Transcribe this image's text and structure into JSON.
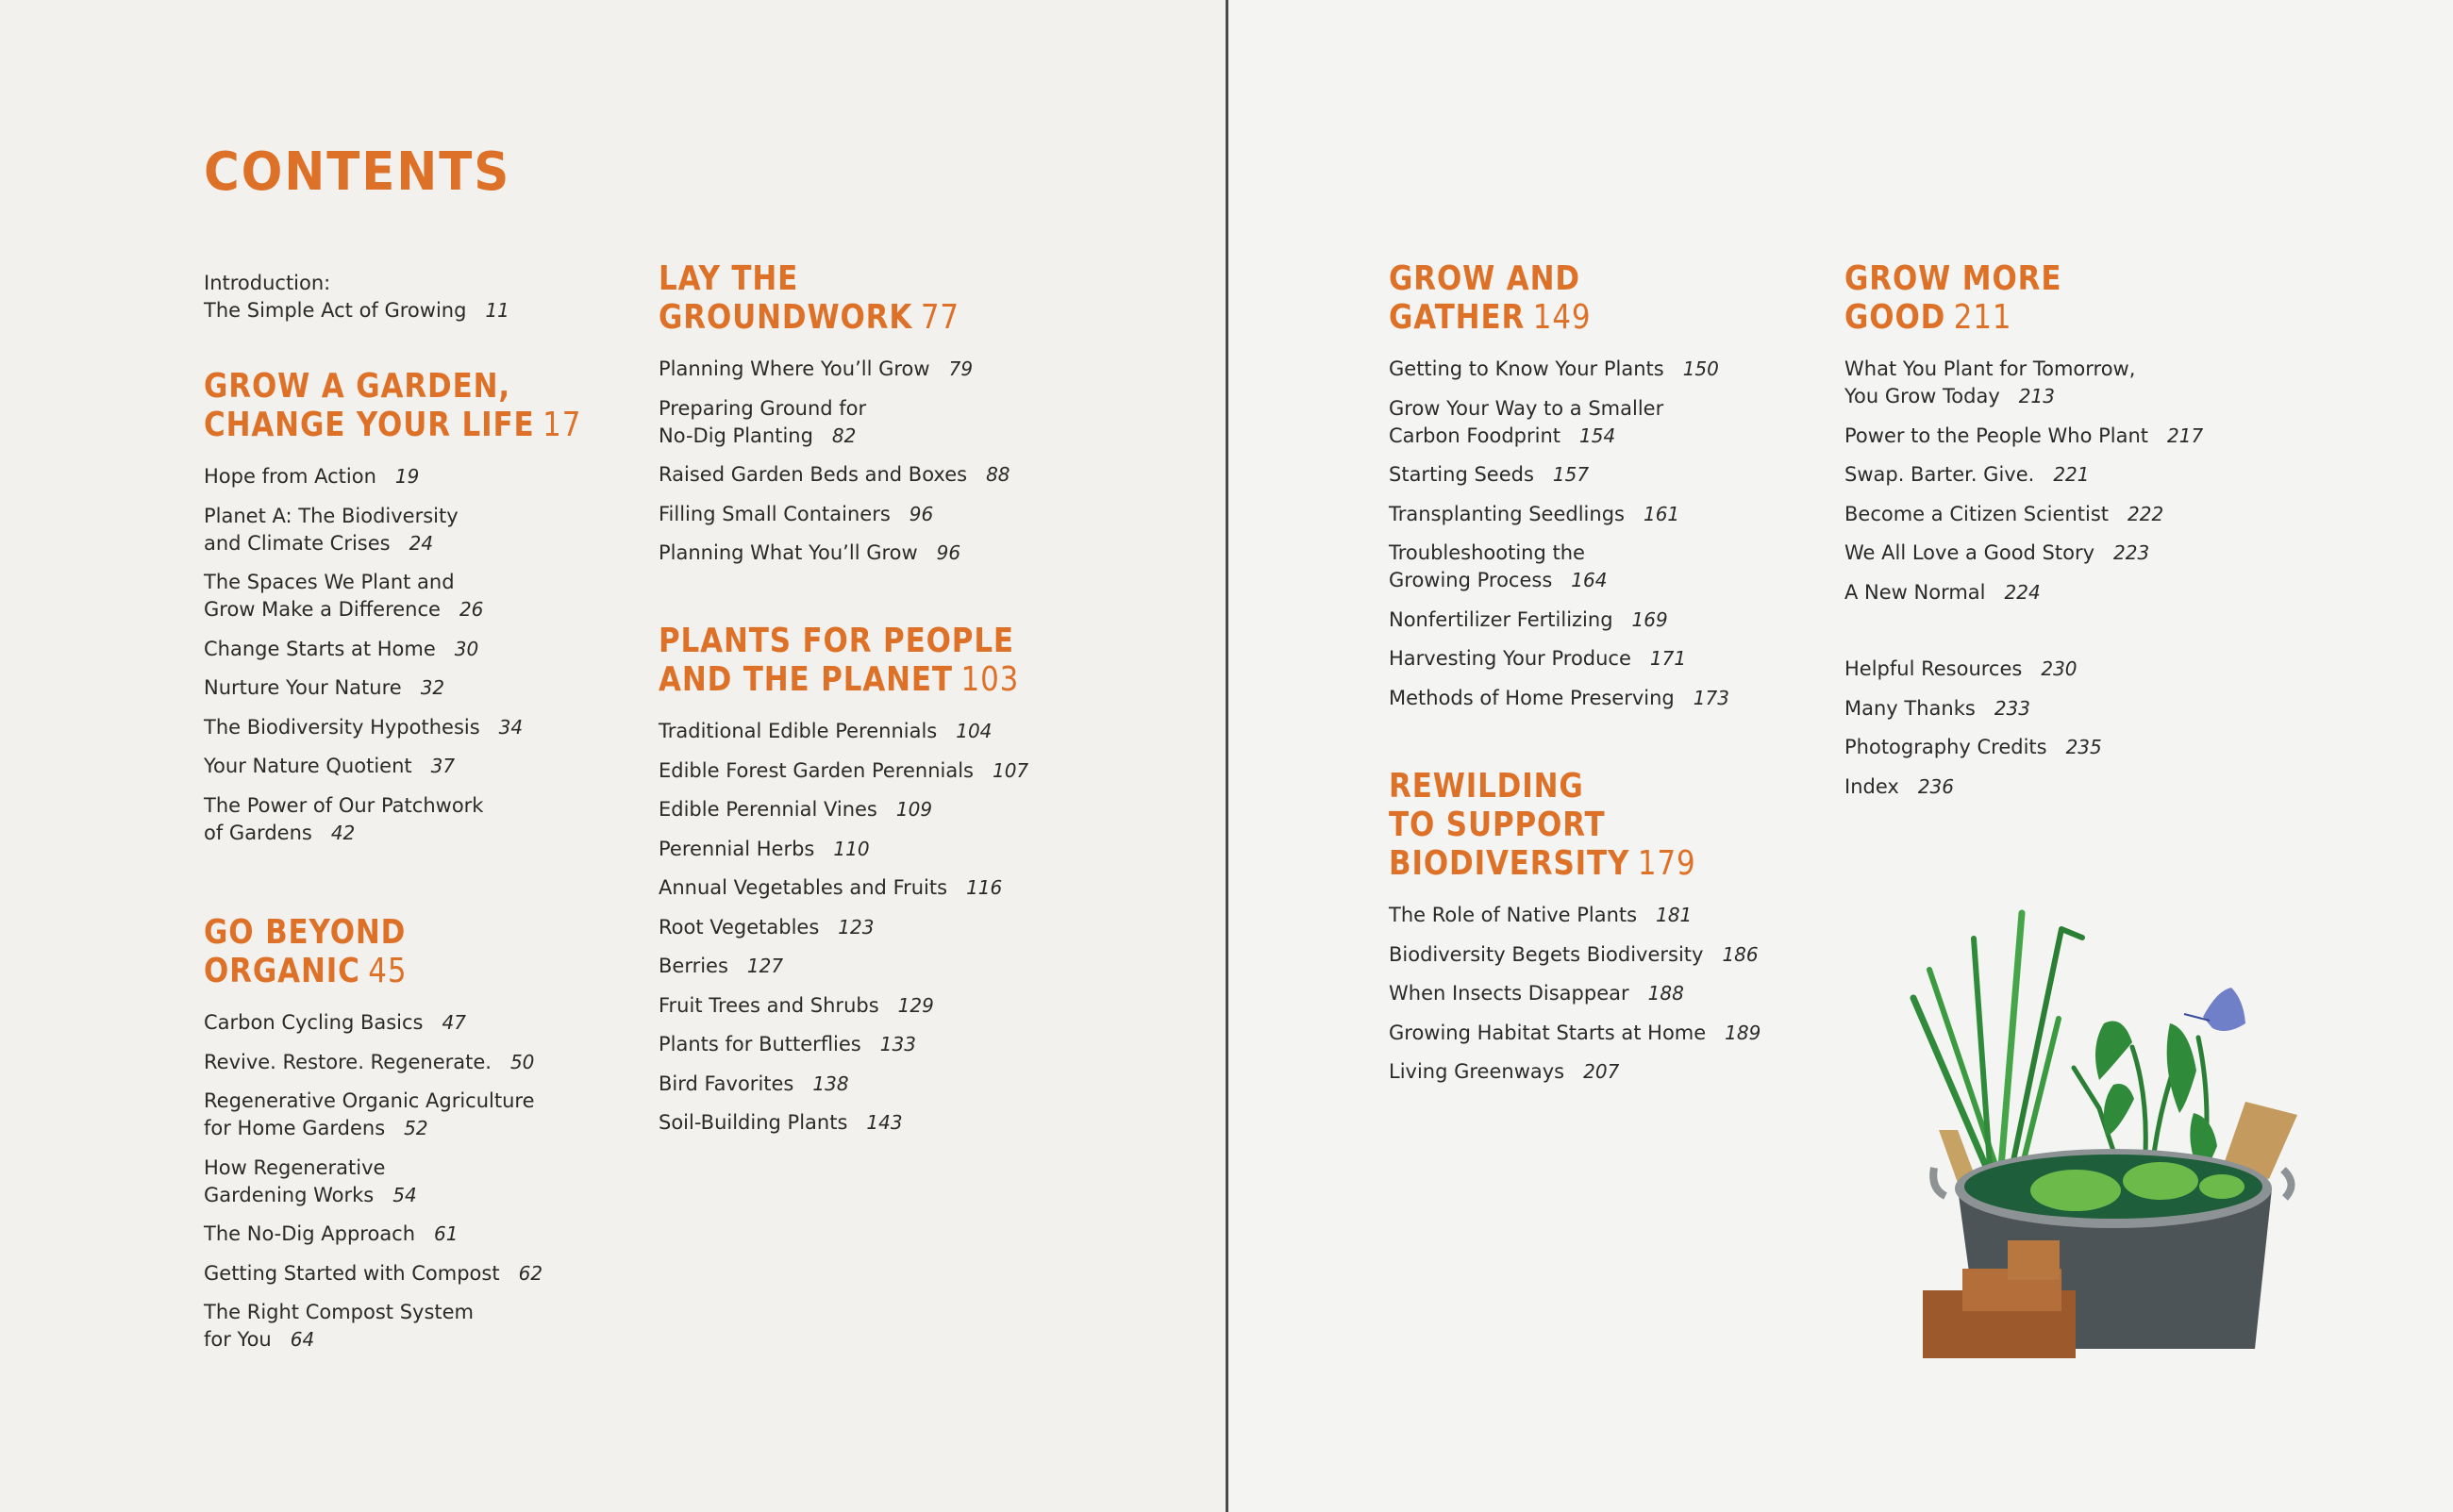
{
  "title": "CONTENTS",
  "colors": {
    "accent": "#de7128",
    "text": "#2b2a28",
    "paper": "#f2f1ee"
  },
  "columns": [
    {
      "sections": [
        {
          "heading_lines": [],
          "heading_page": "",
          "entries": [
            {
              "lines": [
                "Introduction:",
                "The Simple Act of Growing"
              ],
              "page": "11"
            }
          ]
        },
        {
          "heading_lines": [
            "GROW A GARDEN,",
            "CHANGE YOUR LIFE"
          ],
          "heading_page": "17",
          "entries": [
            {
              "lines": [
                "Hope from Action"
              ],
              "page": "19"
            },
            {
              "lines": [
                "Planet A: The Biodiversity",
                "and Climate Crises"
              ],
              "page": "24"
            },
            {
              "lines": [
                "The Spaces We Plant and",
                "Grow Make a Difference"
              ],
              "page": "26"
            },
            {
              "lines": [
                "Change Starts at Home"
              ],
              "page": "30"
            },
            {
              "lines": [
                "Nurture Your Nature"
              ],
              "page": "32"
            },
            {
              "lines": [
                "The Biodiversity Hypothesis"
              ],
              "page": "34"
            },
            {
              "lines": [
                "Your Nature Quotient"
              ],
              "page": "37"
            },
            {
              "lines": [
                "The Power of Our Patchwork",
                "of Gardens"
              ],
              "page": "42"
            }
          ]
        },
        {
          "heading_lines": [
            "GO BEYOND",
            "ORGANIC"
          ],
          "heading_page": "45",
          "entries": [
            {
              "lines": [
                "Carbon Cycling Basics"
              ],
              "page": "47"
            },
            {
              "lines": [
                "Revive. Restore. Regenerate."
              ],
              "page": "50"
            },
            {
              "lines": [
                "Regenerative Organic Agriculture",
                "for Home Gardens"
              ],
              "page": "52"
            },
            {
              "lines": [
                "How Regenerative",
                "Gardening Works"
              ],
              "page": "54"
            },
            {
              "lines": [
                "The No-Dig Approach"
              ],
              "page": "61"
            },
            {
              "lines": [
                "Getting Started with Compost"
              ],
              "page": "62"
            },
            {
              "lines": [
                "The Right Compost System",
                "for You"
              ],
              "page": "64"
            }
          ]
        }
      ]
    },
    {
      "sections": [
        {
          "heading_lines": [
            "LAY THE",
            "GROUNDWORK"
          ],
          "heading_page": "77",
          "entries": [
            {
              "lines": [
                "Planning Where You’ll Grow"
              ],
              "page": "79"
            },
            {
              "lines": [
                "Preparing Ground for",
                "No-Dig Planting"
              ],
              "page": "82"
            },
            {
              "lines": [
                "Raised Garden Beds and Boxes"
              ],
              "page": "88"
            },
            {
              "lines": [
                "Filling Small Containers"
              ],
              "page": "96"
            },
            {
              "lines": [
                "Planning What You’ll Grow"
              ],
              "page": "96"
            }
          ]
        },
        {
          "heading_lines": [
            "PLANTS FOR PEOPLE",
            "AND THE PLANET"
          ],
          "heading_page": "103",
          "entries": [
            {
              "lines": [
                "Traditional Edible Perennials"
              ],
              "page": "104"
            },
            {
              "lines": [
                "Edible Forest Garden Perennials"
              ],
              "page": "107"
            },
            {
              "lines": [
                "Edible Perennial Vines"
              ],
              "page": "109"
            },
            {
              "lines": [
                "Perennial Herbs"
              ],
              "page": "110"
            },
            {
              "lines": [
                "Annual Vegetables and Fruits"
              ],
              "page": "116"
            },
            {
              "lines": [
                "Root Vegetables"
              ],
              "page": "123"
            },
            {
              "lines": [
                "Berries"
              ],
              "page": "127"
            },
            {
              "lines": [
                "Fruit Trees and Shrubs"
              ],
              "page": "129"
            },
            {
              "lines": [
                "Plants for Butterflies"
              ],
              "page": "133"
            },
            {
              "lines": [
                "Bird Favorites"
              ],
              "page": "138"
            },
            {
              "lines": [
                "Soil-Building Plants"
              ],
              "page": "143"
            }
          ]
        }
      ]
    },
    {
      "sections": [
        {
          "heading_lines": [
            "GROW AND",
            "GATHER"
          ],
          "heading_page": "149",
          "entries": [
            {
              "lines": [
                "Getting to Know Your Plants"
              ],
              "page": "150"
            },
            {
              "lines": [
                "Grow Your Way to a Smaller",
                "Carbon Foodprint"
              ],
              "page": "154"
            },
            {
              "lines": [
                "Starting Seeds"
              ],
              "page": "157"
            },
            {
              "lines": [
                "Transplanting Seedlings"
              ],
              "page": "161"
            },
            {
              "lines": [
                "Troubleshooting the",
                "Growing Process"
              ],
              "page": "164"
            },
            {
              "lines": [
                "Nonfertilizer Fertilizing"
              ],
              "page": "169"
            },
            {
              "lines": [
                "Harvesting Your Produce"
              ],
              "page": "171"
            },
            {
              "lines": [
                "Methods of Home Preserving"
              ],
              "page": "173"
            }
          ]
        },
        {
          "heading_lines": [
            "REWILDING",
            "TO SUPPORT",
            "BIODIVERSITY"
          ],
          "heading_page": "179",
          "entries": [
            {
              "lines": [
                "The Role of Native Plants"
              ],
              "page": "181"
            },
            {
              "lines": [
                "Biodiversity Begets Biodiversity"
              ],
              "page": "186"
            },
            {
              "lines": [
                "When Insects Disappear"
              ],
              "page": "188"
            },
            {
              "lines": [
                "Growing Habitat Starts at Home"
              ],
              "page": "189"
            },
            {
              "lines": [
                "Living Greenways"
              ],
              "page": "207"
            }
          ]
        }
      ]
    },
    {
      "sections": [
        {
          "heading_lines": [
            "GROW MORE",
            "GOOD"
          ],
          "heading_page": "211",
          "entries": [
            {
              "lines": [
                "What You Plant for Tomorrow,",
                "You Grow Today"
              ],
              "page": "213"
            },
            {
              "lines": [
                "Power to the People Who Plant"
              ],
              "page": "217"
            },
            {
              "lines": [
                "Swap. Barter. Give."
              ],
              "page": "221"
            },
            {
              "lines": [
                "Become a Citizen Scientist"
              ],
              "page": "222"
            },
            {
              "lines": [
                "We All Love a Good Story"
              ],
              "page": "223"
            },
            {
              "lines": [
                "A New Normal"
              ],
              "page": "224"
            }
          ]
        },
        {
          "heading_lines": [],
          "heading_page": "",
          "entries": [
            {
              "lines": [
                "Helpful Resources"
              ],
              "page": "230"
            },
            {
              "lines": [
                "Many Thanks"
              ],
              "page": "233"
            },
            {
              "lines": [
                "Photography Credits"
              ],
              "page": "235"
            },
            {
              "lines": [
                "Index"
              ],
              "page": "236"
            }
          ]
        }
      ]
    }
  ],
  "illustration": "tub-pond-with-plants-and-butterfly"
}
